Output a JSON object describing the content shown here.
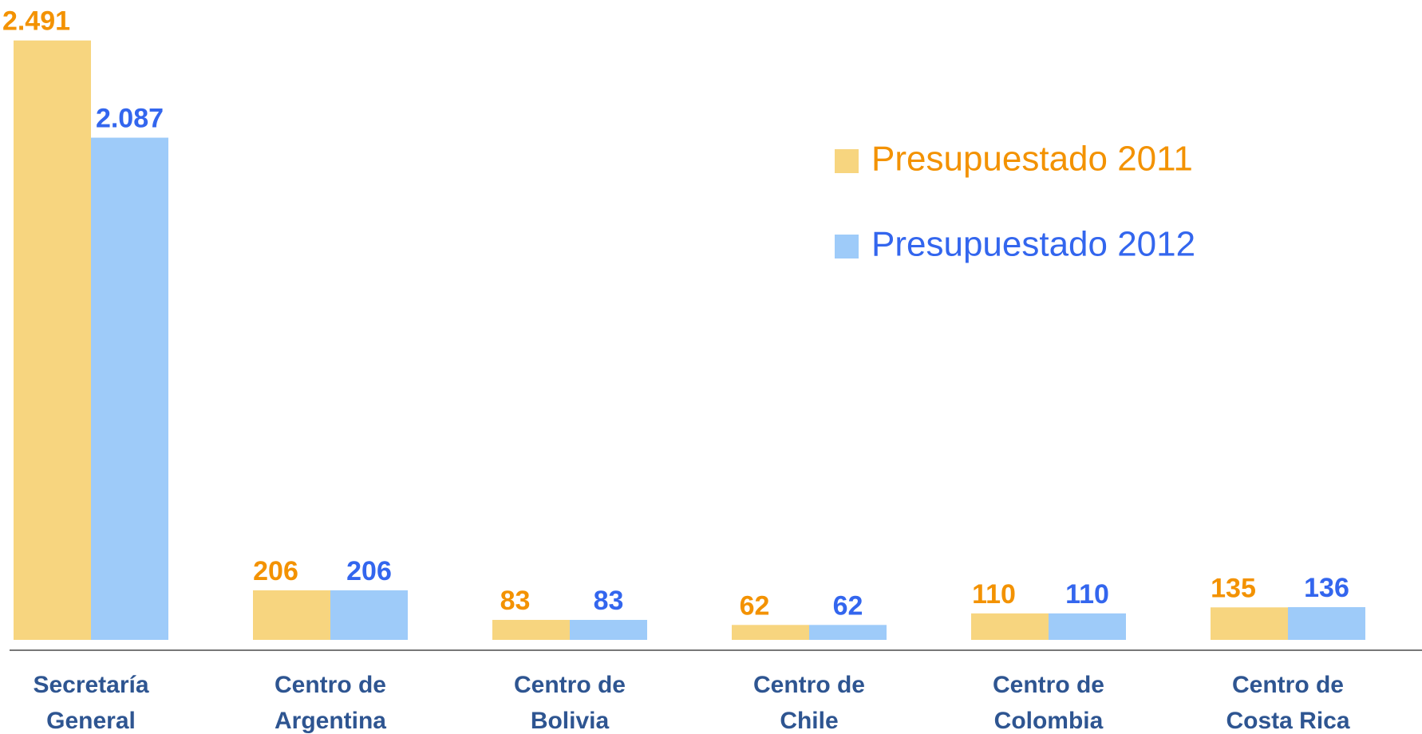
{
  "chart_data": {
    "type": "bar",
    "categories": [
      "Secretaría General",
      "Centro de Argentina",
      "Centro de Bolivia",
      "Centro de Chile",
      "Centro de Colombia",
      "Centro de Costa Rica"
    ],
    "series": [
      {
        "name": "Presupuestado 2011",
        "color": "#f7d57f",
        "label_color": "#f39200",
        "values": [
          2491,
          206,
          83,
          62,
          110,
          135
        ],
        "value_labels": [
          "2.491",
          "206",
          "83",
          "62",
          "110",
          "135"
        ]
      },
      {
        "name": "Presupuestado 2012",
        "color": "#9ecbf9",
        "label_color": "#3366ee",
        "values": [
          2087,
          206,
          83,
          62,
          110,
          136
        ],
        "value_labels": [
          "2.087",
          "206",
          "83",
          "62",
          "110",
          "136"
        ]
      }
    ],
    "ylim": [
      0,
      2500
    ],
    "legend": "upper right"
  }
}
